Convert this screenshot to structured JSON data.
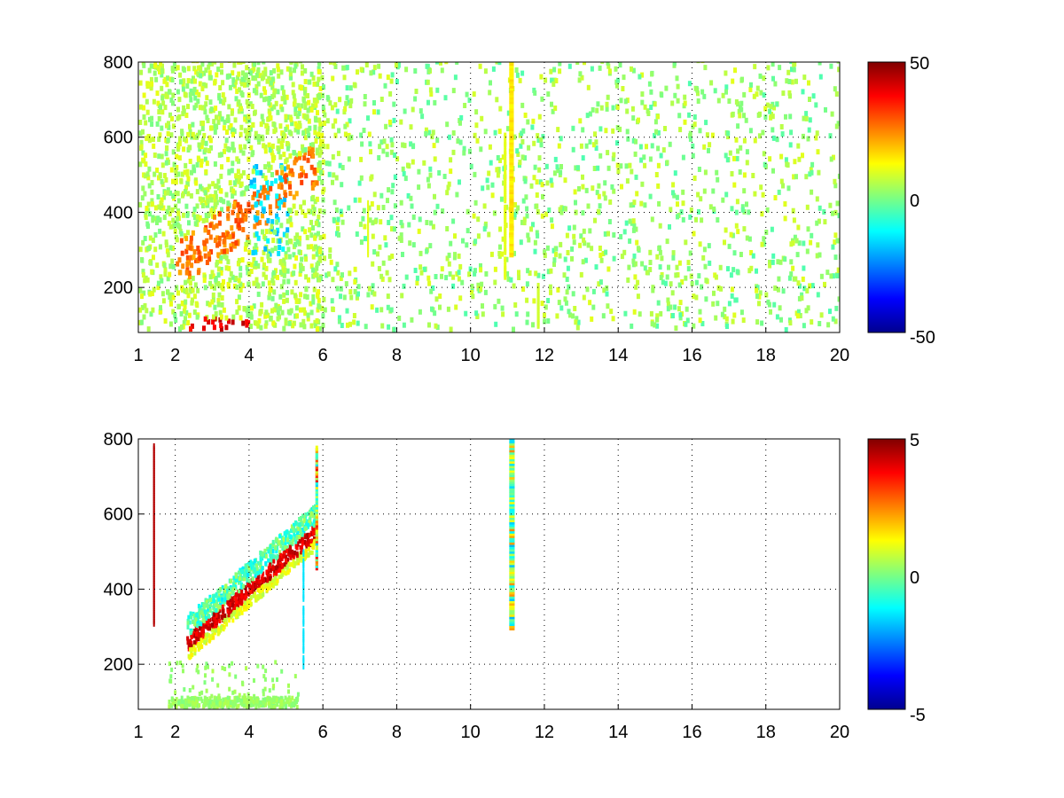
{
  "chart_data": [
    {
      "type": "heatmap",
      "xlim": [
        1,
        20
      ],
      "ylim": [
        80,
        800
      ],
      "xticks": [
        1,
        2,
        4,
        6,
        8,
        10,
        12,
        14,
        16,
        18,
        20
      ],
      "yticks": [
        200,
        400,
        600,
        800
      ],
      "xtick_labels": [
        "1",
        "2",
        "4",
        "6",
        "8",
        "10",
        "12",
        "14",
        "16",
        "18",
        "20"
      ],
      "ytick_labels": [
        "200",
        "400",
        "600",
        "800"
      ],
      "grid": true,
      "colormap": "jet",
      "colorbar": {
        "min": -50,
        "max": 50,
        "labels": [
          "50",
          "0",
          "-50"
        ]
      },
      "description": "Sparse scattered colored cells; dense positive band near x 2–6 rising from y 250 to 550; strong vertical stripe at x 11 from y 280 to 800; scattered cells across x 6–20."
    },
    {
      "type": "heatmap",
      "xlim": [
        1,
        20
      ],
      "ylim": [
        80,
        800
      ],
      "xticks": [
        1,
        2,
        4,
        6,
        8,
        10,
        12,
        14,
        16,
        18,
        20
      ],
      "yticks": [
        200,
        400,
        600,
        800
      ],
      "xtick_labels": [
        "1",
        "2",
        "4",
        "6",
        "8",
        "10",
        "12",
        "14",
        "16",
        "18",
        "20"
      ],
      "ytick_labels": [
        "200",
        "400",
        "600",
        "800"
      ],
      "grid": true,
      "colormap": "jet",
      "colorbar": {
        "min": -5,
        "max": 5,
        "labels": [
          "5",
          "0",
          "-5"
        ]
      },
      "description": "Mostly empty; diagonal high-value band from x 2.3 (y 250) to x 5.8 (y 550); vertical stripe at x 11 from y 290 to 790; thin vertical line at x 1.4."
    }
  ]
}
